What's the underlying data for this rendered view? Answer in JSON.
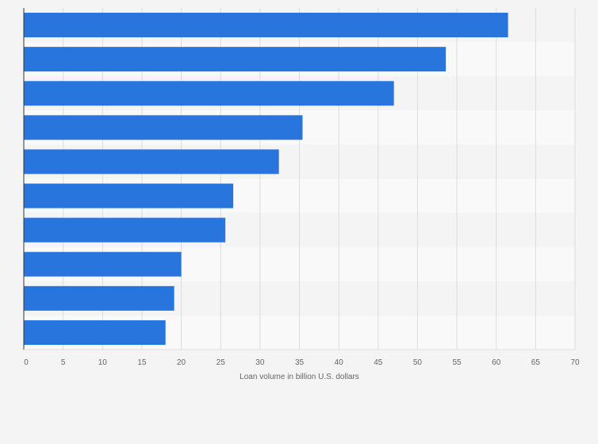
{
  "chart_data": {
    "type": "bar",
    "orientation": "horizontal",
    "title": "",
    "xlabel": "Loan volume in billion U.S. dollars",
    "ylabel": "",
    "categories": [
      "",
      "",
      "",
      "",
      "",
      "",
      "",
      "",
      "",
      ""
    ],
    "values": [
      61.5,
      53.6,
      47.0,
      35.4,
      32.4,
      26.6,
      25.6,
      20.0,
      19.1,
      18.0
    ],
    "xlim": [
      0,
      70
    ],
    "xticks": [
      "0",
      "5",
      "10",
      "15",
      "20",
      "25",
      "30",
      "35",
      "40",
      "45",
      "50",
      "55",
      "60",
      "65",
      "70"
    ],
    "grid": true,
    "legend": "none",
    "bar_color": "#2876dd"
  }
}
